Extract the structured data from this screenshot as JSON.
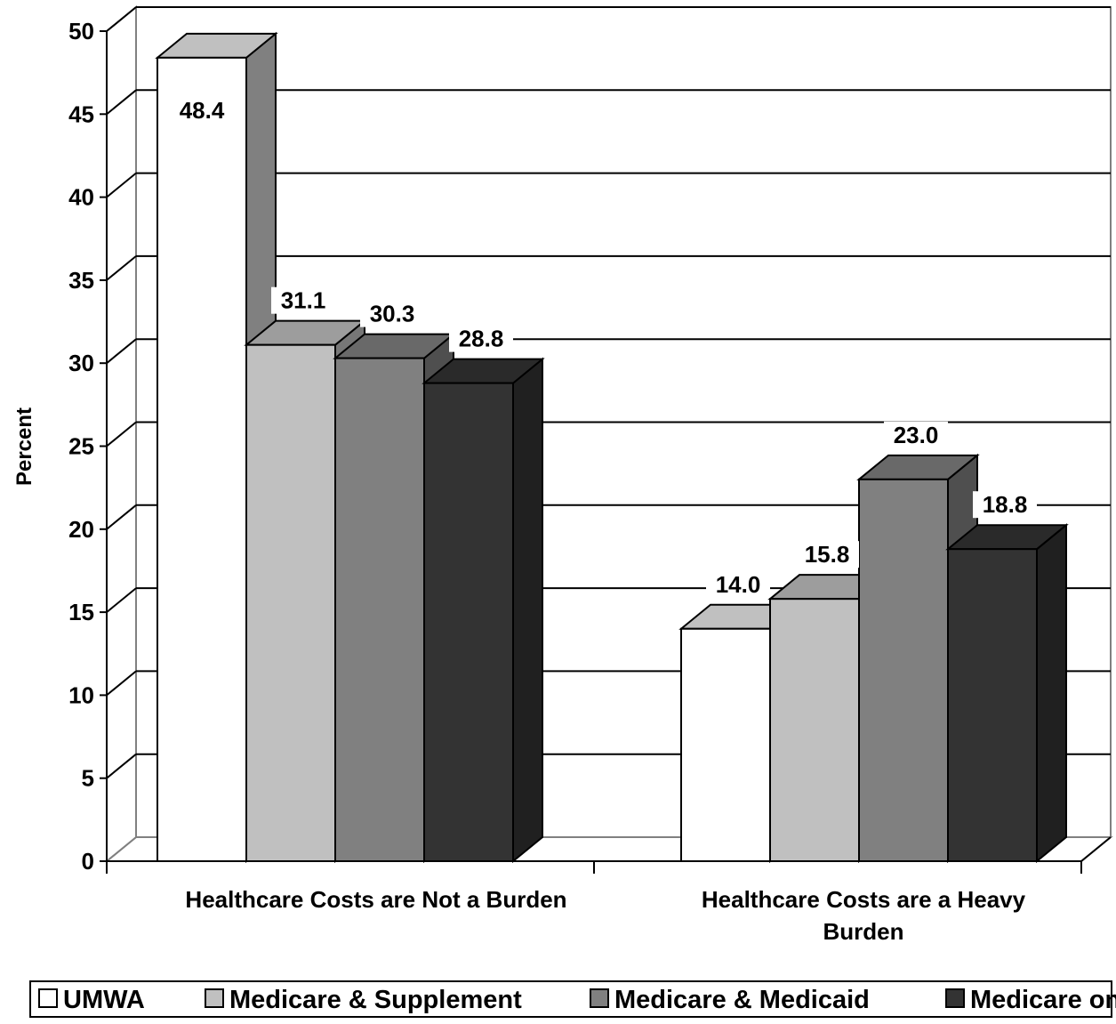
{
  "chart_data": {
    "type": "bar",
    "style": "3d-clustered",
    "ylabel": "Percent",
    "ylim": [
      0,
      50
    ],
    "ytick_step": 5,
    "yticks": [
      "0",
      "5",
      "10",
      "15",
      "20",
      "25",
      "30",
      "35",
      "40",
      "45",
      "50"
    ],
    "grid": true,
    "categories": [
      [
        "Healthcare Costs are Not a Burden"
      ],
      [
        "Healthcare Costs are a Heavy",
        "Burden"
      ]
    ],
    "series": [
      {
        "name": "UMWA",
        "values": [
          48.4,
          14.0
        ],
        "labels": [
          "48.4",
          "14.0"
        ],
        "color": "#ffffff"
      },
      {
        "name": "Medicare & Supplement",
        "values": [
          31.1,
          15.8
        ],
        "labels": [
          "31.1",
          "15.8"
        ],
        "color": "#c0c0c0"
      },
      {
        "name": "Medicare & Medicaid",
        "values": [
          30.3,
          23.0
        ],
        "labels": [
          "30.3",
          "23.0"
        ],
        "color": "#808080"
      },
      {
        "name": "Medicare only",
        "values": [
          28.8,
          18.8
        ],
        "labels": [
          "28.8",
          "18.8"
        ],
        "color": "#333333"
      }
    ],
    "legend_position": "bottom"
  }
}
